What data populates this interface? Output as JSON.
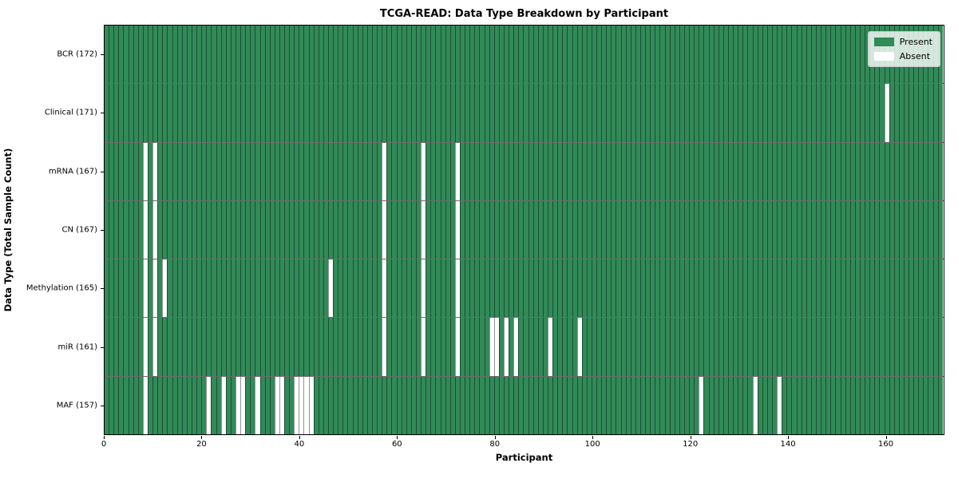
{
  "chart_data": {
    "type": "heatmap",
    "title": "TCGA-READ: Data Type Breakdown by Participant",
    "xlabel": "Participant",
    "ylabel": "Data Type (Total Sample Count)",
    "n_participants": 172,
    "xlim": [
      0,
      172
    ],
    "x_ticks": [
      0,
      20,
      40,
      60,
      80,
      100,
      120,
      140,
      160
    ],
    "legend_position": "upper-right",
    "grid": "cell-edges",
    "rows": [
      {
        "label": "BCR (172)",
        "present_count": 172,
        "absent_participants": []
      },
      {
        "label": "Clinical (171)",
        "present_count": 171,
        "absent_participants": [
          160
        ]
      },
      {
        "label": "mRNA (167)",
        "present_count": 167,
        "absent_participants": [
          8,
          10,
          57,
          65,
          72
        ]
      },
      {
        "label": "CN (167)",
        "present_count": 167,
        "absent_participants": [
          8,
          10,
          57,
          65,
          72
        ]
      },
      {
        "label": "Methylation (165)",
        "present_count": 165,
        "absent_participants": [
          8,
          10,
          12,
          46,
          57,
          65,
          72
        ]
      },
      {
        "label": "miR (161)",
        "present_count": 161,
        "absent_participants": [
          8,
          10,
          57,
          65,
          72,
          79,
          80,
          82,
          84,
          91,
          97
        ]
      },
      {
        "label": "MAF (157)",
        "present_count": 157,
        "absent_participants": [
          8,
          21,
          24,
          27,
          28,
          31,
          35,
          36,
          39,
          40,
          41,
          42,
          122,
          133,
          138
        ]
      }
    ],
    "legend": [
      {
        "label": "Present",
        "color": "#318a58"
      },
      {
        "label": "Absent",
        "color": "#ffffff"
      }
    ],
    "colors": {
      "present": "#318a58",
      "absent": "#ffffff",
      "plot_border": "#000000"
    }
  }
}
